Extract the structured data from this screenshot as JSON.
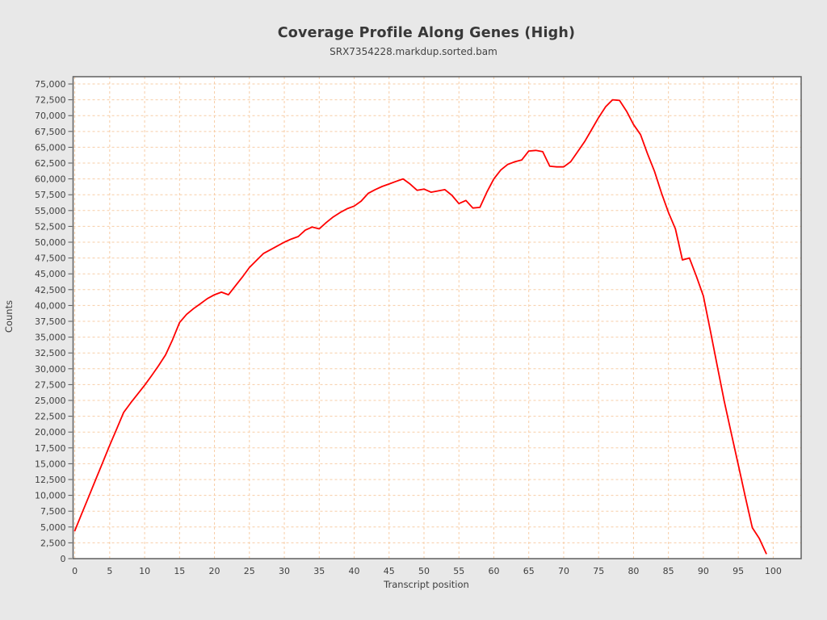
{
  "page": {
    "background": "#e8e8e8"
  },
  "chart_data": {
    "type": "line",
    "title": "Coverage Profile Along Genes (High)",
    "subtitle": "SRX7354228.markdup.sorted.bam",
    "xlabel": "Transcript position",
    "ylabel": "Counts",
    "legend": "none",
    "grid": true,
    "xlim": [
      0,
      104
    ],
    "ylim": [
      0,
      76150
    ],
    "x_ticks": [
      0,
      5,
      10,
      15,
      20,
      25,
      30,
      35,
      40,
      45,
      50,
      55,
      60,
      65,
      70,
      75,
      80,
      85,
      90,
      95,
      100
    ],
    "y_tick_min": 0,
    "y_tick_max": 75000,
    "y_tick_step": 2500,
    "x": [
      0,
      1,
      2,
      3,
      4,
      5,
      6,
      7,
      8,
      9,
      10,
      11,
      12,
      13,
      14,
      15,
      16,
      17,
      18,
      19,
      20,
      21,
      22,
      23,
      24,
      25,
      26,
      27,
      28,
      29,
      30,
      31,
      32,
      33,
      34,
      35,
      36,
      37,
      38,
      39,
      40,
      41,
      42,
      43,
      44,
      45,
      46,
      47,
      48,
      49,
      50,
      51,
      52,
      53,
      54,
      55,
      56,
      57,
      58,
      59,
      60,
      61,
      62,
      63,
      64,
      65,
      66,
      67,
      68,
      69,
      70,
      71,
      72,
      73,
      74,
      75,
      76,
      77,
      78,
      79,
      80,
      81,
      82,
      83,
      84,
      85,
      86,
      87,
      88,
      89,
      90,
      91,
      92,
      93,
      94,
      95,
      96,
      97,
      98,
      99
    ],
    "values": [
      4400,
      7100,
      9800,
      12500,
      15200,
      17900,
      20500,
      23100,
      24600,
      26000,
      27400,
      28900,
      30500,
      32200,
      34600,
      37300,
      38600,
      39500,
      40300,
      41100,
      41700,
      42100,
      41700,
      43100,
      44500,
      46000,
      47100,
      48200,
      48800,
      49400,
      50000,
      50500,
      50900,
      51900,
      52400,
      52100,
      53100,
      54000,
      54700,
      55300,
      55700,
      56500,
      57700,
      58300,
      58800,
      59200,
      59600,
      60000,
      59200,
      58200,
      58400,
      57900,
      58100,
      58300,
      57400,
      56100,
      56600,
      55400,
      55500,
      57900,
      60000,
      61400,
      62300,
      62700,
      63000,
      64400,
      64500,
      64300,
      62000,
      61900,
      61900,
      62700,
      64300,
      65900,
      67800,
      69700,
      71400,
      72500,
      72400,
      70700,
      68600,
      67000,
      64000,
      61200,
      57800,
      54700,
      52100,
      47200,
      47500,
      44600,
      41500,
      36000,
      30400,
      24800,
      19800,
      14800,
      9800,
      4900,
      3200,
      800
    ],
    "colors": {
      "line": "#ff0000",
      "grid": "#f7cda6",
      "plot_bg": "#ffffff",
      "outer_bg": "#e8e8e8",
      "border": "#5f5f5f",
      "tick": "#555555",
      "text": "#3f3f3f"
    }
  }
}
